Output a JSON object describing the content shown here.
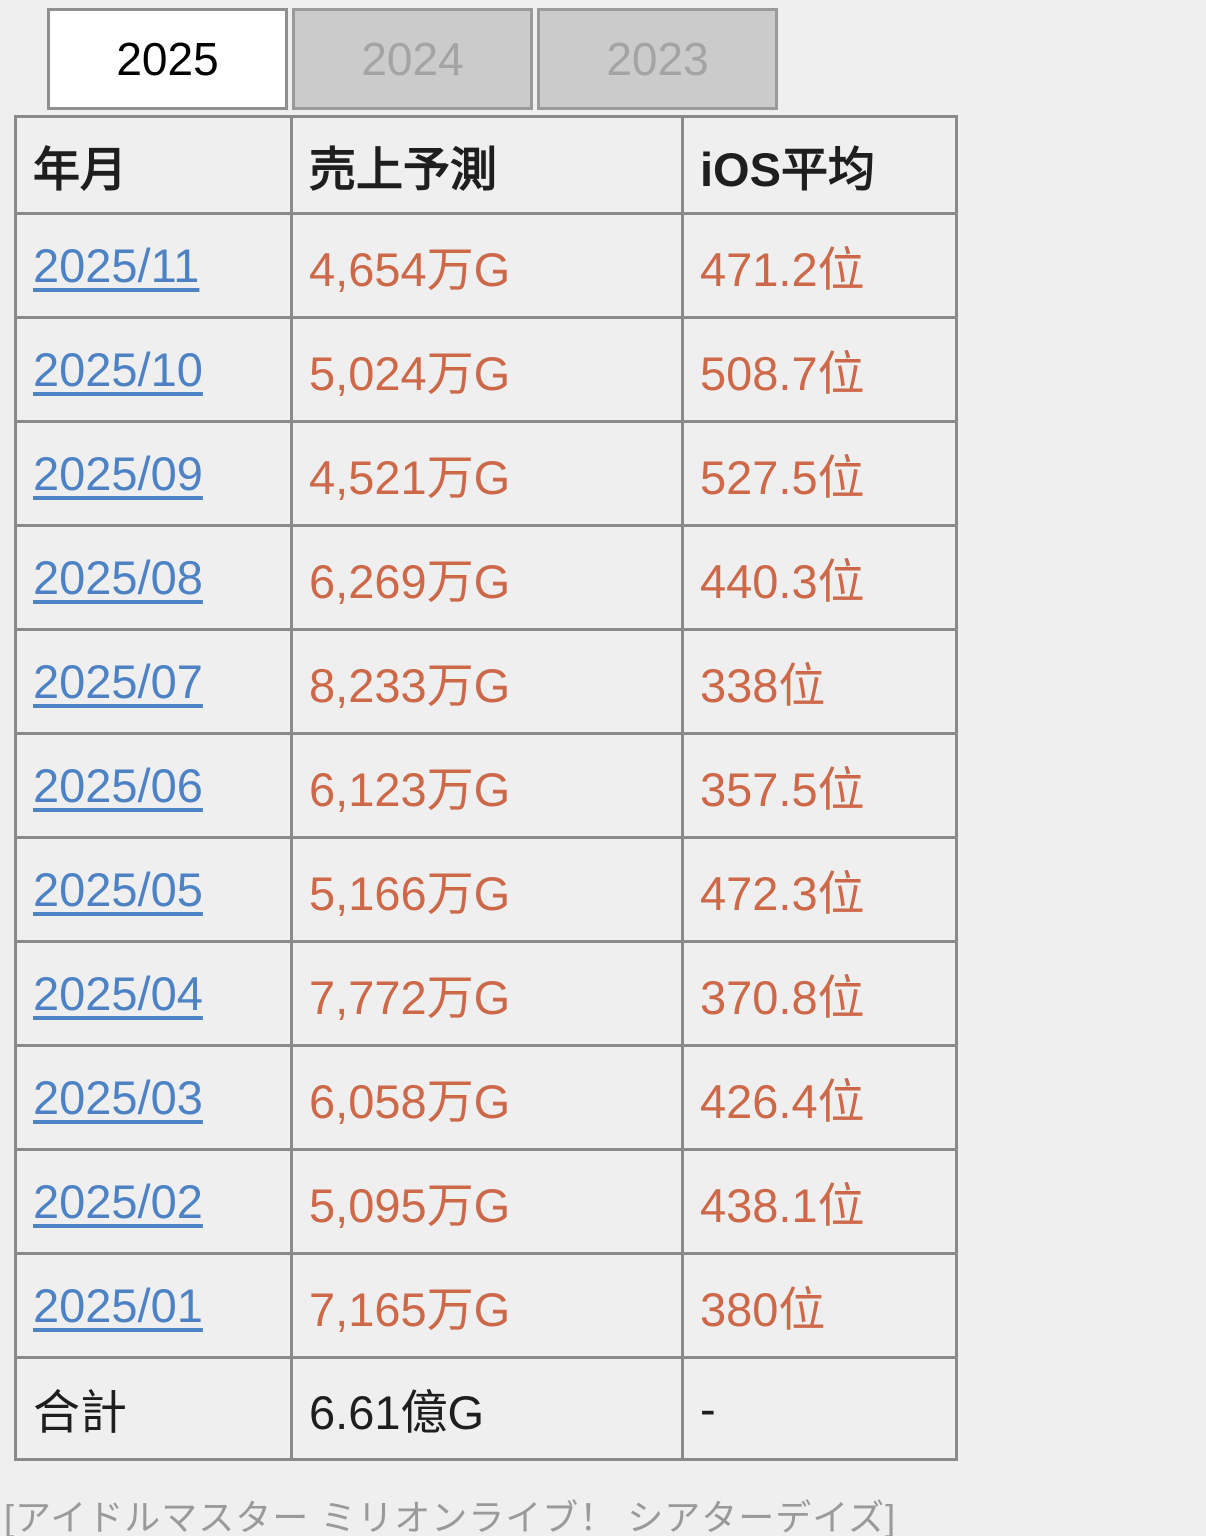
{
  "tabs": [
    {
      "label": "2025",
      "active": true
    },
    {
      "label": "2024",
      "active": false
    },
    {
      "label": "2023",
      "active": false
    }
  ],
  "table": {
    "headers": [
      "年月",
      "売上予測",
      "iOS平均"
    ],
    "rows": [
      {
        "month": "2025/11",
        "sales": "4,654万G",
        "rank": "471.2位"
      },
      {
        "month": "2025/10",
        "sales": "5,024万G",
        "rank": "508.7位"
      },
      {
        "month": "2025/09",
        "sales": "4,521万G",
        "rank": "527.5位"
      },
      {
        "month": "2025/08",
        "sales": "6,269万G",
        "rank": "440.3位"
      },
      {
        "month": "2025/07",
        "sales": "8,233万G",
        "rank": "338位"
      },
      {
        "month": "2025/06",
        "sales": "6,123万G",
        "rank": "357.5位"
      },
      {
        "month": "2025/05",
        "sales": "5,166万G",
        "rank": "472.3位"
      },
      {
        "month": "2025/04",
        "sales": "7,772万G",
        "rank": "370.8位"
      },
      {
        "month": "2025/03",
        "sales": "6,058万G",
        "rank": "426.4位"
      },
      {
        "month": "2025/02",
        "sales": "5,095万G",
        "rank": "438.1位"
      },
      {
        "month": "2025/01",
        "sales": "7,165万G",
        "rank": "380位"
      }
    ],
    "total": {
      "label": "合計",
      "sales": "6.61億G",
      "rank": "-"
    }
  },
  "footer": {
    "app_title": "[アイドルマスター ミリオンライブ！ シアターデイズ]"
  },
  "colors": {
    "page_bg": "#efefef",
    "border_gray": "#8a8a8a",
    "link_blue": "#4d82c4",
    "value_orange": "#cd6849",
    "tab_inactive_bg": "#cbcbcb",
    "tab_inactive_text": "#a4a4a4",
    "tab_active_bg": "#ffffff",
    "header_text": "#1e1e1e",
    "footer_text": "#9a9a9a"
  }
}
